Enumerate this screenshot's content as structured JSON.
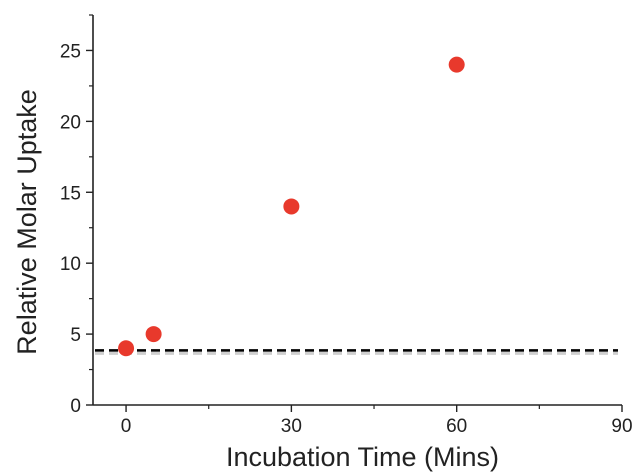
{
  "chart_data": {
    "type": "scatter",
    "xlabel": "Incubation Time (Mins)",
    "ylabel": "Relative Molar Uptake",
    "xlim": [
      -6,
      90
    ],
    "ylim": [
      0,
      27.5
    ],
    "x_ticks": [
      0,
      30,
      60,
      90
    ],
    "y_ticks": [
      0,
      5,
      10,
      15,
      20,
      25
    ],
    "grid": false,
    "series": [
      {
        "x": [
          0,
          5,
          30,
          60
        ],
        "y": [
          4,
          5,
          14,
          24
        ],
        "color": "#e8392c"
      }
    ],
    "reference_line": {
      "y": 3.85,
      "color": "#000000",
      "style": "dashed"
    }
  }
}
